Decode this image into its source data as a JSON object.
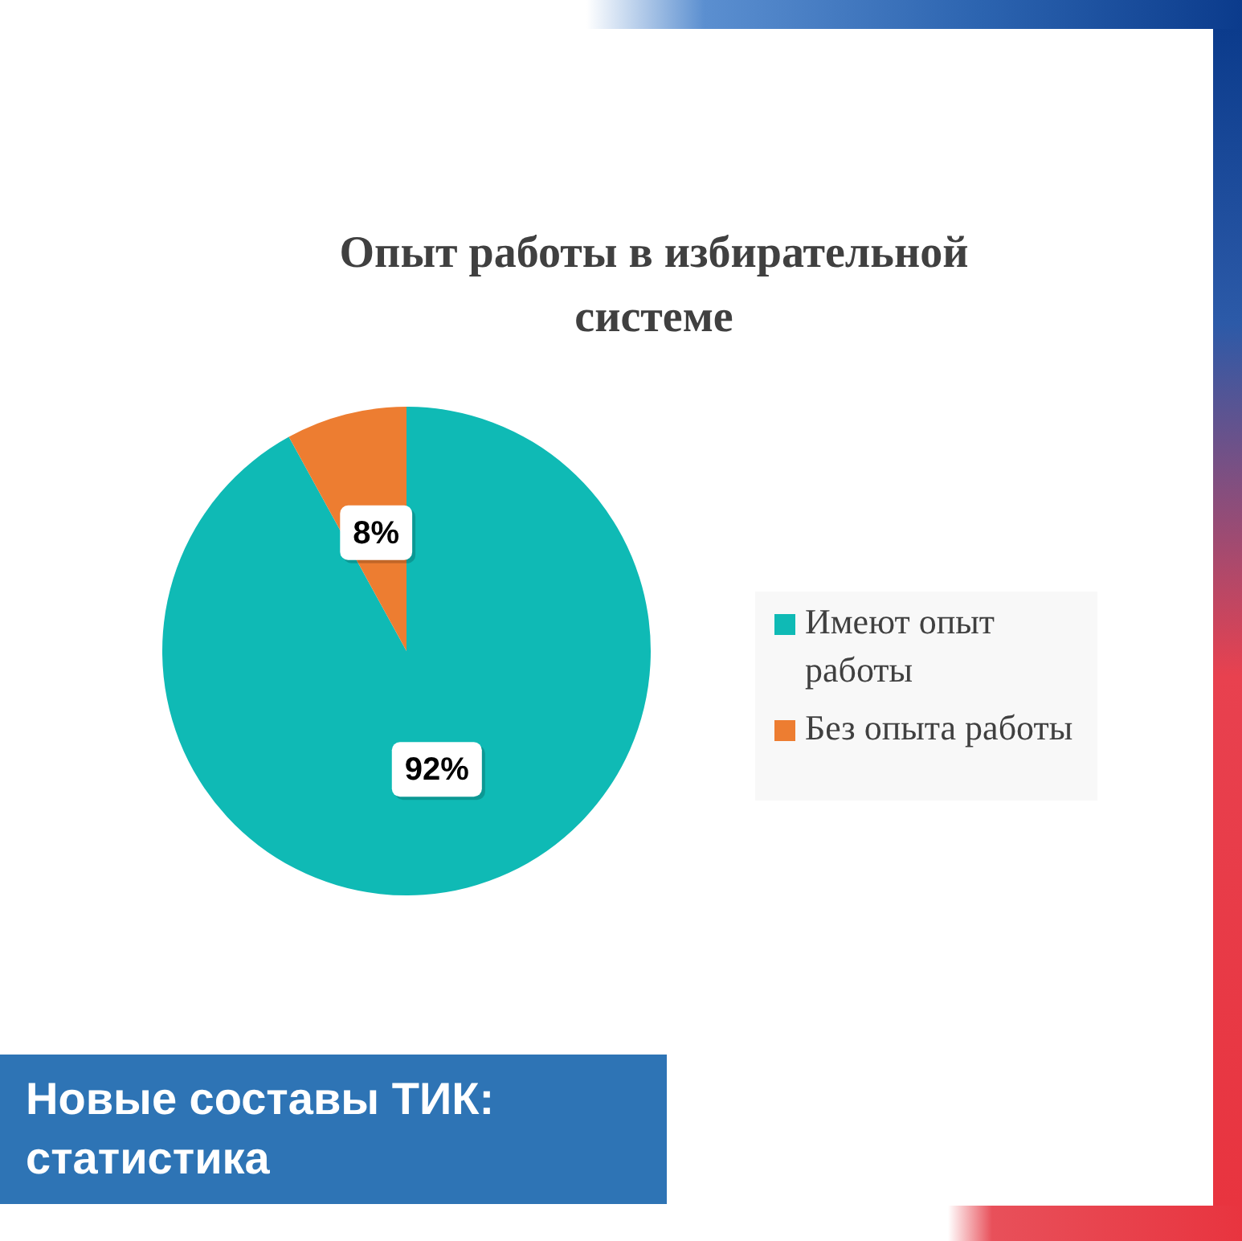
{
  "chart_data": {
    "type": "pie",
    "title": "Опыт работы в избирательной системе",
    "categories": [
      "Имеют опыт работы",
      "Без опыта работы"
    ],
    "values": [
      92,
      8
    ],
    "colors": [
      "#0fbab5",
      "#ed7d31"
    ],
    "value_labels": [
      "92%",
      "8%"
    ],
    "legend": "right",
    "annotations": [
      "Новые составы ТИК: статистика"
    ]
  }
}
